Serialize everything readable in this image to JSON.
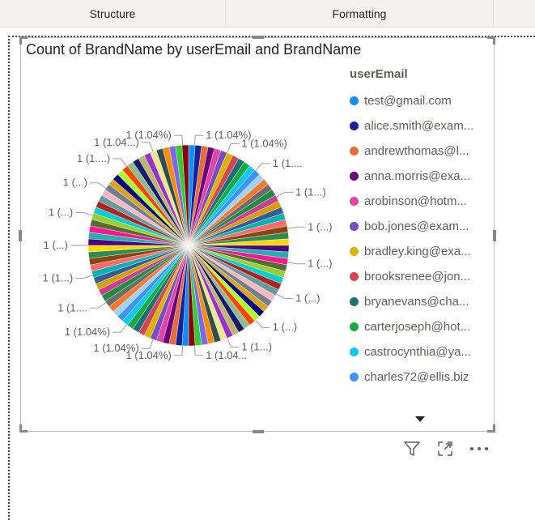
{
  "tabs": {
    "structure": "Structure",
    "formatting": "Formatting"
  },
  "chart_title": "Count of BrandName by userEmail and BrandName",
  "legend": {
    "title": "userEmail",
    "items": [
      {
        "label": "test@gmail.com",
        "color": "#118dff"
      },
      {
        "label": "alice.smith@exam...",
        "color": "#12239e"
      },
      {
        "label": "andrewthomas@l...",
        "color": "#e66c37"
      },
      {
        "label": "anna.morris@exa...",
        "color": "#6b007b"
      },
      {
        "label": "arobinson@hotm...",
        "color": "#e044a7"
      },
      {
        "label": "bob.jones@exam...",
        "color": "#744ec2"
      },
      {
        "label": "bradley.king@exa...",
        "color": "#d9b300"
      },
      {
        "label": "brooksrenee@jon...",
        "color": "#d64550"
      },
      {
        "label": "bryanevans@cha...",
        "color": "#197278"
      },
      {
        "label": "carterjoseph@hot...",
        "color": "#1aab40"
      },
      {
        "label": "castrocynthia@ya...",
        "color": "#15c6f4"
      },
      {
        "label": "charles72@ellis.biz",
        "color": "#4092ff"
      }
    ]
  },
  "chart_data": {
    "type": "pie",
    "title": "Count of BrandName by userEmail and BrandName",
    "slice_count": 96,
    "slice_value": 1,
    "slice_percent": 1.04,
    "palette": [
      "#118dff",
      "#12239e",
      "#e66c37",
      "#6b007b",
      "#e044a7",
      "#744ec2",
      "#d9b300",
      "#d64550",
      "#197278",
      "#1aab40",
      "#15c6f4",
      "#4092ff",
      "#a0d1ff",
      "#fa7a2a",
      "#6c6c6c",
      "#1e8c3e",
      "#c83d95",
      "#d4a000",
      "#3b5998",
      "#00b4b1",
      "#ff6b6b",
      "#8b4513",
      "#2e8b57",
      "#ffd700",
      "#4b0082",
      "#20b2aa",
      "#ff1493",
      "#556b2f",
      "#9acd32",
      "#00ced1",
      "#b22222",
      "#5f9ea0",
      "#ffb6c1",
      "#708090",
      "#daa520",
      "#000080",
      "#adff2f",
      "#ff4500",
      "#8fbc8f",
      "#191970",
      "#bdb76b",
      "#9932cc",
      "#f0e68c",
      "#2f4f4f",
      "#ff8c00",
      "#7b68ee",
      "#32cd32",
      "#8b0000"
    ],
    "labels": [
      {
        "text": "1 (1.04%)"
      },
      {
        "text": "1 (1.04%)"
      },
      {
        "text": "1 (1...."
      },
      {
        "text": "1 (1...)"
      },
      {
        "text": "1 (...)"
      },
      {
        "text": "1 (...)"
      },
      {
        "text": "1 (...)"
      },
      {
        "text": "1 (...)"
      },
      {
        "text": "1 (1...)"
      },
      {
        "text": "1 (1.04..."
      },
      {
        "text": "1 (1.04%)"
      },
      {
        "text": "1 (1.04%)"
      },
      {
        "text": "1 (1.04%)"
      },
      {
        "text": "1 (1...."
      },
      {
        "text": "1 (1...)"
      },
      {
        "text": "1 (...)"
      },
      {
        "text": "1 (...)"
      },
      {
        "text": "1 (...)"
      },
      {
        "text": "1 (1....)"
      },
      {
        "text": "1 (1.04...)"
      },
      {
        "text": "1 (1.04%)"
      }
    ]
  },
  "toolbar": {
    "filter_icon": "filter-icon",
    "focus_icon": "focus-mode-icon",
    "more_icon": "more-options-icon"
  }
}
